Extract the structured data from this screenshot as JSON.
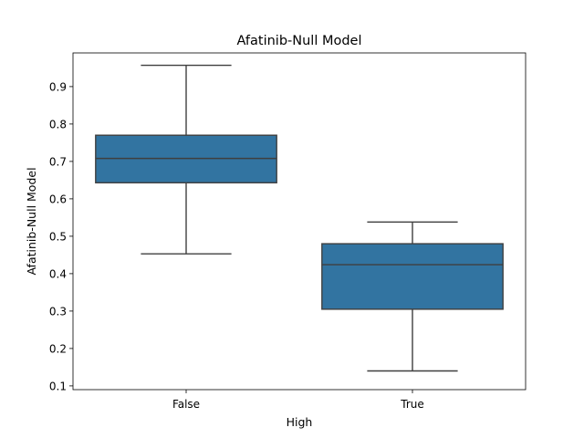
{
  "chart_data": {
    "type": "box",
    "title": "Afatinib-Null Model",
    "xlabel": "High",
    "ylabel": "Afatinib-Null Model",
    "categories": [
      "False",
      "True"
    ],
    "boxes": [
      {
        "category": "False",
        "whisker_low": 0.453,
        "q1": 0.643,
        "median": 0.708,
        "q3": 0.77,
        "whisker_high": 0.957
      },
      {
        "category": "True",
        "whisker_low": 0.14,
        "q1": 0.305,
        "median": 0.424,
        "q3": 0.48,
        "whisker_high": 0.538
      }
    ],
    "ylim": [
      0.09,
      0.99
    ],
    "yticks": [
      0.1,
      0.2,
      0.3,
      0.4,
      0.5,
      0.6,
      0.7,
      0.8,
      0.9
    ],
    "ytick_labels": [
      "0.1",
      "0.2",
      "0.3",
      "0.4",
      "0.5",
      "0.6",
      "0.7",
      "0.8",
      "0.9"
    ],
    "box_color": "#3274a1",
    "line_color": "#3f3f3f",
    "grid": false
  }
}
